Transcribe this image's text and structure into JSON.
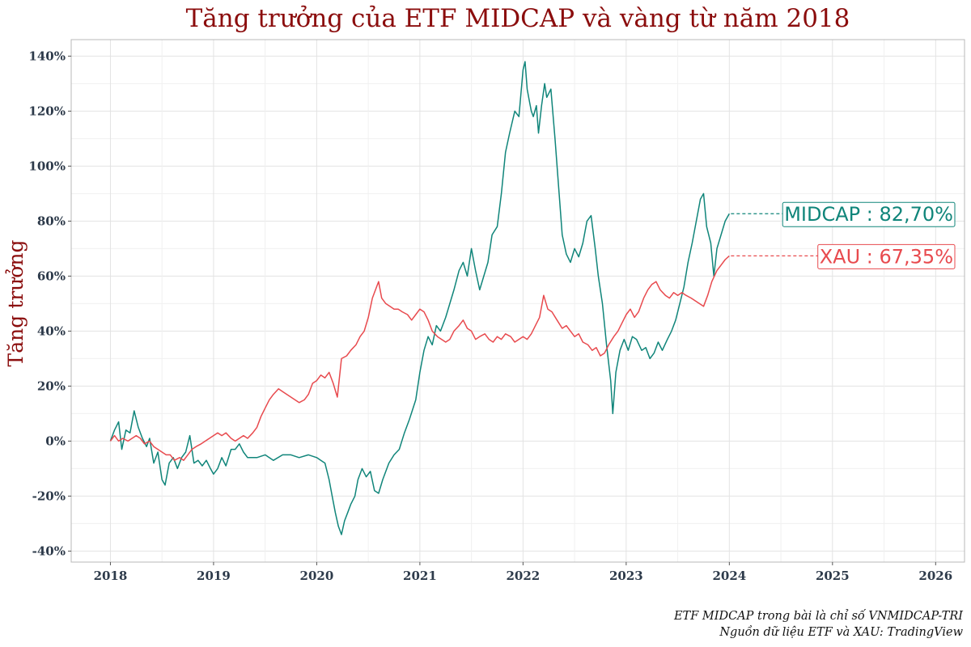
{
  "chart_data": {
    "type": "line",
    "title": "Tăng trưởng của ETF MIDCAP và vàng từ năm 2018",
    "ylabel": "Tăng trưởng",
    "xlabel": "",
    "x_ticks": [
      "2018",
      "2019",
      "2020",
      "2021",
      "2022",
      "2023",
      "2024",
      "2025",
      "2026"
    ],
    "y_ticks": [
      "-40%",
      "-20%",
      "0%",
      "20%",
      "40%",
      "60%",
      "80%",
      "100%",
      "120%",
      "140%"
    ],
    "xlim": [
      2017.62,
      2026.28
    ],
    "ylim": [
      -44,
      146
    ],
    "grid": true,
    "legend": "none",
    "series": [
      {
        "name": "MIDCAP",
        "color": "#10857a",
        "end_label": "MIDCAP : 82,70%",
        "points": [
          [
            2018.0,
            0
          ],
          [
            2018.04,
            4
          ],
          [
            2018.08,
            7
          ],
          [
            2018.11,
            -3
          ],
          [
            2018.15,
            4
          ],
          [
            2018.19,
            3
          ],
          [
            2018.23,
            11
          ],
          [
            2018.27,
            5
          ],
          [
            2018.31,
            1
          ],
          [
            2018.35,
            -2
          ],
          [
            2018.38,
            1
          ],
          [
            2018.42,
            -8
          ],
          [
            2018.46,
            -4
          ],
          [
            2018.5,
            -14
          ],
          [
            2018.53,
            -16
          ],
          [
            2018.57,
            -8
          ],
          [
            2018.61,
            -6
          ],
          [
            2018.65,
            -10
          ],
          [
            2018.69,
            -6
          ],
          [
            2018.73,
            -4
          ],
          [
            2018.77,
            2
          ],
          [
            2018.81,
            -8
          ],
          [
            2018.85,
            -7
          ],
          [
            2018.89,
            -9
          ],
          [
            2018.93,
            -7
          ],
          [
            2018.97,
            -10
          ],
          [
            2019.0,
            -12
          ],
          [
            2019.04,
            -10
          ],
          [
            2019.08,
            -6
          ],
          [
            2019.12,
            -9
          ],
          [
            2019.17,
            -3
          ],
          [
            2019.21,
            -3
          ],
          [
            2019.25,
            -1
          ],
          [
            2019.29,
            -4
          ],
          [
            2019.33,
            -6
          ],
          [
            2019.38,
            -6
          ],
          [
            2019.42,
            -6
          ],
          [
            2019.5,
            -5
          ],
          [
            2019.58,
            -7
          ],
          [
            2019.67,
            -5
          ],
          [
            2019.75,
            -5
          ],
          [
            2019.83,
            -6
          ],
          [
            2019.92,
            -5
          ],
          [
            2020.0,
            -6
          ],
          [
            2020.04,
            -7
          ],
          [
            2020.08,
            -8
          ],
          [
            2020.12,
            -14
          ],
          [
            2020.15,
            -20
          ],
          [
            2020.18,
            -26
          ],
          [
            2020.21,
            -31
          ],
          [
            2020.24,
            -34
          ],
          [
            2020.27,
            -29
          ],
          [
            2020.3,
            -26
          ],
          [
            2020.33,
            -23
          ],
          [
            2020.37,
            -20
          ],
          [
            2020.4,
            -14
          ],
          [
            2020.44,
            -10
          ],
          [
            2020.48,
            -13
          ],
          [
            2020.52,
            -11
          ],
          [
            2020.56,
            -18
          ],
          [
            2020.6,
            -19
          ],
          [
            2020.64,
            -14
          ],
          [
            2020.7,
            -8
          ],
          [
            2020.75,
            -5
          ],
          [
            2020.8,
            -3
          ],
          [
            2020.85,
            3
          ],
          [
            2020.9,
            8
          ],
          [
            2020.96,
            15
          ],
          [
            2021.0,
            25
          ],
          [
            2021.04,
            33
          ],
          [
            2021.08,
            38
          ],
          [
            2021.12,
            35
          ],
          [
            2021.16,
            42
          ],
          [
            2021.2,
            40
          ],
          [
            2021.25,
            45
          ],
          [
            2021.29,
            50
          ],
          [
            2021.33,
            55
          ],
          [
            2021.38,
            62
          ],
          [
            2021.42,
            65
          ],
          [
            2021.46,
            60
          ],
          [
            2021.5,
            70
          ],
          [
            2021.54,
            62
          ],
          [
            2021.58,
            55
          ],
          [
            2021.62,
            60
          ],
          [
            2021.66,
            65
          ],
          [
            2021.7,
            75
          ],
          [
            2021.75,
            78
          ],
          [
            2021.79,
            90
          ],
          [
            2021.83,
            105
          ],
          [
            2021.87,
            112
          ],
          [
            2021.92,
            120
          ],
          [
            2021.96,
            118
          ],
          [
            2022.0,
            135
          ],
          [
            2022.02,
            138
          ],
          [
            2022.04,
            128
          ],
          [
            2022.06,
            124
          ],
          [
            2022.08,
            120
          ],
          [
            2022.1,
            118
          ],
          [
            2022.13,
            122
          ],
          [
            2022.15,
            112
          ],
          [
            2022.18,
            122
          ],
          [
            2022.21,
            130
          ],
          [
            2022.23,
            125
          ],
          [
            2022.27,
            128
          ],
          [
            2022.31,
            110
          ],
          [
            2022.35,
            90
          ],
          [
            2022.38,
            75
          ],
          [
            2022.42,
            68
          ],
          [
            2022.46,
            65
          ],
          [
            2022.5,
            70
          ],
          [
            2022.54,
            67
          ],
          [
            2022.58,
            72
          ],
          [
            2022.62,
            80
          ],
          [
            2022.66,
            82
          ],
          [
            2022.7,
            70
          ],
          [
            2022.73,
            60
          ],
          [
            2022.77,
            50
          ],
          [
            2022.81,
            35
          ],
          [
            2022.85,
            22
          ],
          [
            2022.87,
            10
          ],
          [
            2022.9,
            25
          ],
          [
            2022.94,
            33
          ],
          [
            2022.98,
            37
          ],
          [
            2023.02,
            33
          ],
          [
            2023.06,
            38
          ],
          [
            2023.1,
            37
          ],
          [
            2023.15,
            33
          ],
          [
            2023.19,
            34
          ],
          [
            2023.23,
            30
          ],
          [
            2023.27,
            32
          ],
          [
            2023.31,
            36
          ],
          [
            2023.35,
            33
          ],
          [
            2023.4,
            37
          ],
          [
            2023.44,
            40
          ],
          [
            2023.48,
            44
          ],
          [
            2023.52,
            50
          ],
          [
            2023.56,
            56
          ],
          [
            2023.6,
            65
          ],
          [
            2023.64,
            72
          ],
          [
            2023.68,
            80
          ],
          [
            2023.72,
            88
          ],
          [
            2023.75,
            90
          ],
          [
            2023.78,
            78
          ],
          [
            2023.82,
            72
          ],
          [
            2023.85,
            60
          ],
          [
            2023.88,
            70
          ],
          [
            2023.92,
            75
          ],
          [
            2023.96,
            80
          ],
          [
            2024.0,
            82.7
          ]
        ]
      },
      {
        "name": "XAU",
        "color": "#e84a4e",
        "end_label": "XAU : 67,35%",
        "points": [
          [
            2018.0,
            0
          ],
          [
            2018.04,
            2
          ],
          [
            2018.08,
            0
          ],
          [
            2018.12,
            1
          ],
          [
            2018.17,
            0
          ],
          [
            2018.21,
            1
          ],
          [
            2018.25,
            2
          ],
          [
            2018.29,
            1
          ],
          [
            2018.33,
            -1
          ],
          [
            2018.38,
            0
          ],
          [
            2018.42,
            -2
          ],
          [
            2018.46,
            -3
          ],
          [
            2018.5,
            -4
          ],
          [
            2018.54,
            -5
          ],
          [
            2018.58,
            -5
          ],
          [
            2018.62,
            -7
          ],
          [
            2018.67,
            -6
          ],
          [
            2018.71,
            -7
          ],
          [
            2018.75,
            -5
          ],
          [
            2018.79,
            -3
          ],
          [
            2018.83,
            -2
          ],
          [
            2018.88,
            -1
          ],
          [
            2018.92,
            0
          ],
          [
            2018.96,
            1
          ],
          [
            2019.0,
            2
          ],
          [
            2019.04,
            3
          ],
          [
            2019.08,
            2
          ],
          [
            2019.12,
            3
          ],
          [
            2019.17,
            1
          ],
          [
            2019.21,
            0
          ],
          [
            2019.25,
            1
          ],
          [
            2019.29,
            2
          ],
          [
            2019.33,
            1
          ],
          [
            2019.38,
            3
          ],
          [
            2019.42,
            5
          ],
          [
            2019.46,
            9
          ],
          [
            2019.5,
            12
          ],
          [
            2019.54,
            15
          ],
          [
            2019.58,
            17
          ],
          [
            2019.63,
            19
          ],
          [
            2019.67,
            18
          ],
          [
            2019.71,
            17
          ],
          [
            2019.75,
            16
          ],
          [
            2019.79,
            15
          ],
          [
            2019.83,
            14
          ],
          [
            2019.88,
            15
          ],
          [
            2019.92,
            17
          ],
          [
            2019.96,
            21
          ],
          [
            2020.0,
            22
          ],
          [
            2020.04,
            24
          ],
          [
            2020.08,
            23
          ],
          [
            2020.12,
            25
          ],
          [
            2020.16,
            21
          ],
          [
            2020.2,
            16
          ],
          [
            2020.24,
            30
          ],
          [
            2020.29,
            31
          ],
          [
            2020.33,
            33
          ],
          [
            2020.38,
            35
          ],
          [
            2020.42,
            38
          ],
          [
            2020.46,
            40
          ],
          [
            2020.5,
            45
          ],
          [
            2020.54,
            52
          ],
          [
            2020.58,
            56
          ],
          [
            2020.6,
            58
          ],
          [
            2020.63,
            52
          ],
          [
            2020.67,
            50
          ],
          [
            2020.71,
            49
          ],
          [
            2020.75,
            48
          ],
          [
            2020.79,
            48
          ],
          [
            2020.83,
            47
          ],
          [
            2020.88,
            46
          ],
          [
            2020.92,
            44
          ],
          [
            2020.96,
            46
          ],
          [
            2021.0,
            48
          ],
          [
            2021.04,
            47
          ],
          [
            2021.08,
            44
          ],
          [
            2021.12,
            40
          ],
          [
            2021.17,
            38
          ],
          [
            2021.21,
            37
          ],
          [
            2021.25,
            36
          ],
          [
            2021.29,
            37
          ],
          [
            2021.33,
            40
          ],
          [
            2021.38,
            42
          ],
          [
            2021.42,
            44
          ],
          [
            2021.46,
            41
          ],
          [
            2021.5,
            40
          ],
          [
            2021.54,
            37
          ],
          [
            2021.58,
            38
          ],
          [
            2021.63,
            39
          ],
          [
            2021.67,
            37
          ],
          [
            2021.71,
            36
          ],
          [
            2021.75,
            38
          ],
          [
            2021.79,
            37
          ],
          [
            2021.83,
            39
          ],
          [
            2021.88,
            38
          ],
          [
            2021.92,
            36
          ],
          [
            2021.96,
            37
          ],
          [
            2022.0,
            38
          ],
          [
            2022.04,
            37
          ],
          [
            2022.08,
            39
          ],
          [
            2022.12,
            42
          ],
          [
            2022.16,
            45
          ],
          [
            2022.2,
            53
          ],
          [
            2022.24,
            48
          ],
          [
            2022.28,
            47
          ],
          [
            2022.33,
            44
          ],
          [
            2022.38,
            41
          ],
          [
            2022.42,
            42
          ],
          [
            2022.46,
            40
          ],
          [
            2022.5,
            38
          ],
          [
            2022.54,
            39
          ],
          [
            2022.58,
            36
          ],
          [
            2022.63,
            35
          ],
          [
            2022.67,
            33
          ],
          [
            2022.71,
            34
          ],
          [
            2022.75,
            31
          ],
          [
            2022.79,
            32
          ],
          [
            2022.83,
            35
          ],
          [
            2022.88,
            38
          ],
          [
            2022.92,
            40
          ],
          [
            2022.96,
            43
          ],
          [
            2023.0,
            46
          ],
          [
            2023.04,
            48
          ],
          [
            2023.08,
            45
          ],
          [
            2023.12,
            47
          ],
          [
            2023.17,
            52
          ],
          [
            2023.21,
            55
          ],
          [
            2023.25,
            57
          ],
          [
            2023.29,
            58
          ],
          [
            2023.33,
            55
          ],
          [
            2023.38,
            53
          ],
          [
            2023.42,
            52
          ],
          [
            2023.46,
            54
          ],
          [
            2023.5,
            53
          ],
          [
            2023.54,
            54
          ],
          [
            2023.58,
            53
          ],
          [
            2023.63,
            52
          ],
          [
            2023.67,
            51
          ],
          [
            2023.71,
            50
          ],
          [
            2023.75,
            49
          ],
          [
            2023.79,
            53
          ],
          [
            2023.83,
            58
          ],
          [
            2023.88,
            62
          ],
          [
            2023.92,
            64
          ],
          [
            2023.96,
            66
          ],
          [
            2024.0,
            67.35
          ]
        ]
      }
    ],
    "annotations": [
      "ETF MIDCAP trong bài là chỉ số VNMIDCAP-TRI",
      "Nguồn dữ liệu ETF và XAU: TradingView"
    ]
  },
  "colors": {
    "title": "#8b0d0d",
    "grid": "#e3e3e3",
    "midcap": "#10857a",
    "xau": "#e84a4e"
  }
}
